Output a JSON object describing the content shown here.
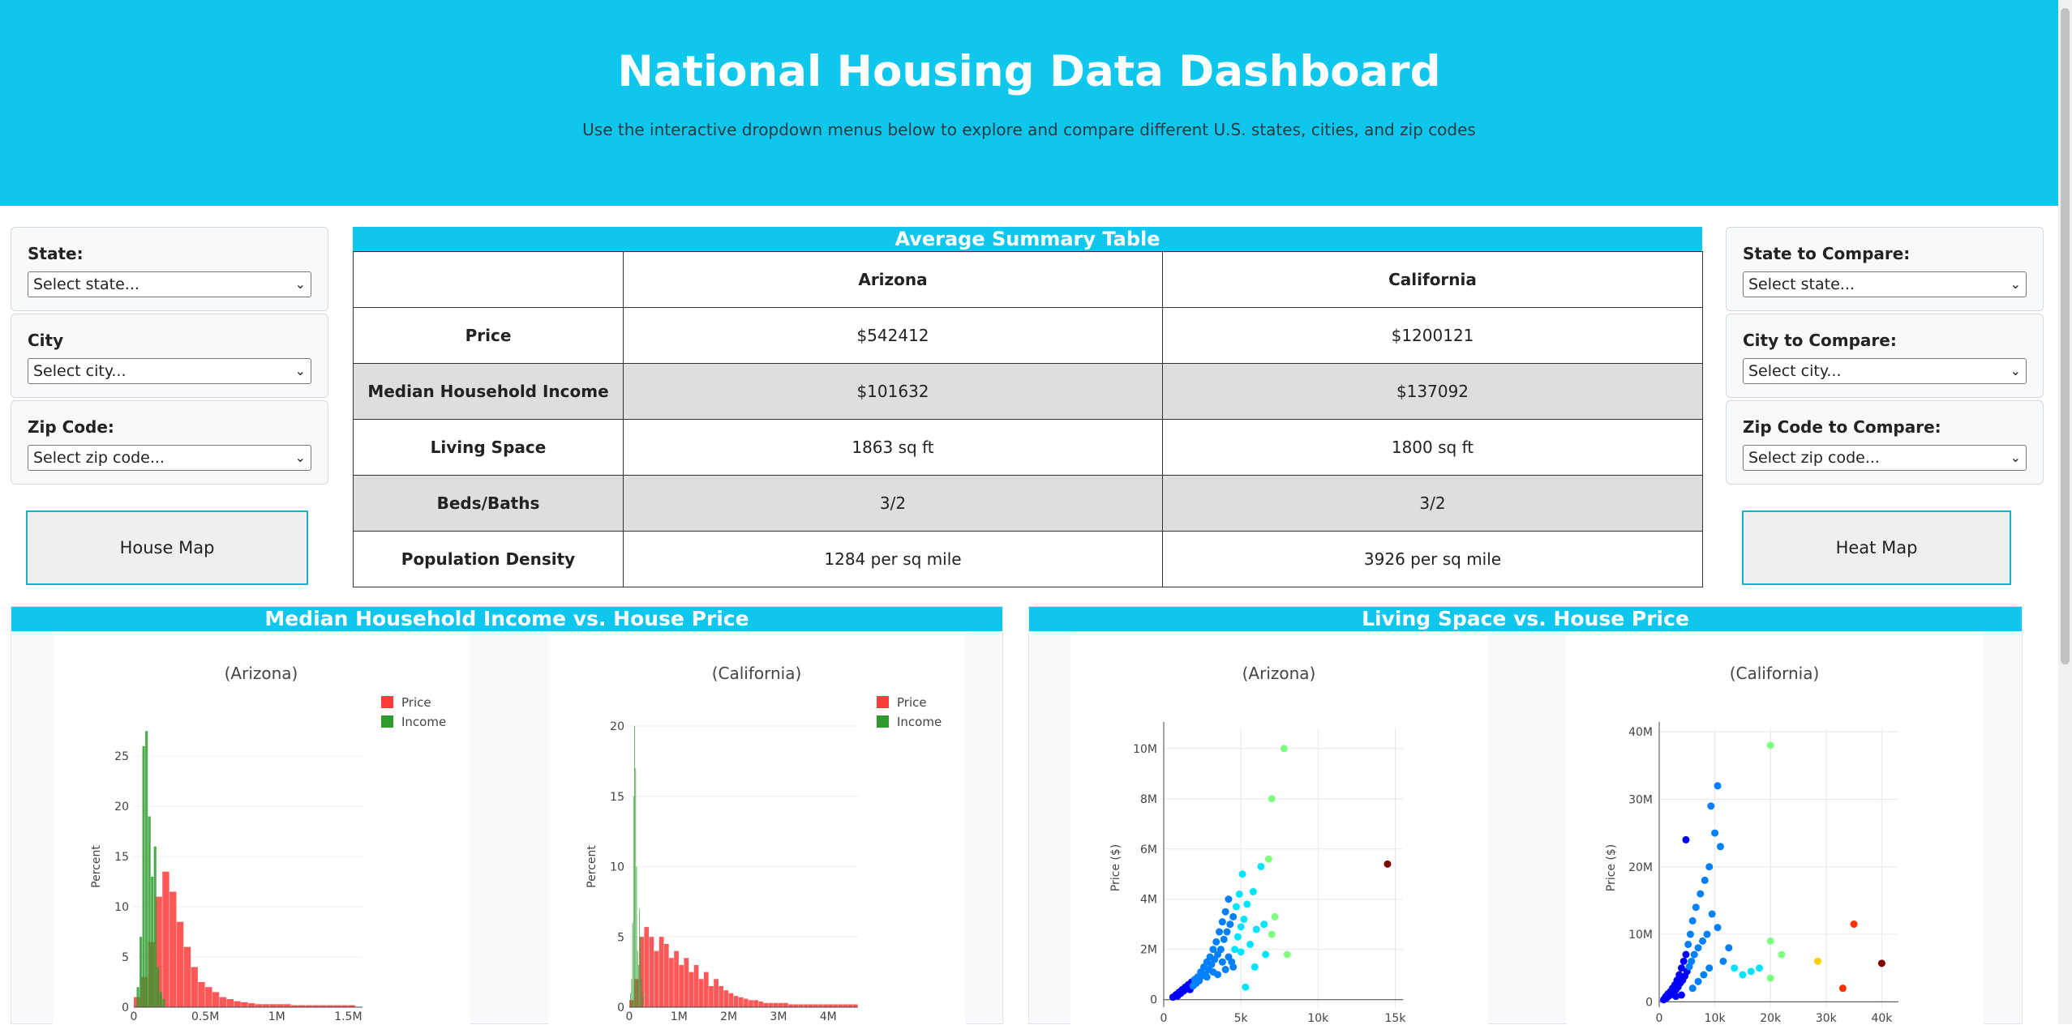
{
  "header": {
    "title": "National Housing Data Dashboard",
    "subtitle": "Use the interactive dropdown menus below to explore and compare different U.S. states, cities, and zip codes"
  },
  "left_controls": {
    "state": {
      "label": "State:",
      "value": "Select state..."
    },
    "city": {
      "label": "City",
      "value": "Select city..."
    },
    "zip": {
      "label": "Zip Code:",
      "value": "Select zip code..."
    },
    "map_button": "House Map"
  },
  "right_controls": {
    "state": {
      "label": "State to Compare:",
      "value": "Select state..."
    },
    "city": {
      "label": "City to Compare:",
      "value": "Select city..."
    },
    "zip": {
      "label": "Zip Code to Compare:",
      "value": "Select zip code..."
    },
    "map_button": "Heat Map"
  },
  "summary_table": {
    "title": "Average Summary Table",
    "columns": [
      "",
      "Arizona",
      "California"
    ],
    "rows": [
      {
        "label": "Price",
        "a": "$542412",
        "b": "$1200121"
      },
      {
        "label": "Median Household Income",
        "a": "$101632",
        "b": "$137092"
      },
      {
        "label": "Living Space",
        "a": "1863 sq ft",
        "b": "1800 sq ft"
      },
      {
        "label": "Beds/Baths",
        "a": "3/2",
        "b": "3/2"
      },
      {
        "label": "Population Density",
        "a": "1284 per sq mile",
        "b": "3926 per sq mile"
      }
    ]
  },
  "panels": {
    "income_title": "Median Household Income vs. House Price",
    "space_title": "Living Space vs. House Price"
  },
  "colors": {
    "header": "#0fc6ec",
    "price": "#ff3b3b",
    "income": "#2e9b2e"
  },
  "chart_data": [
    {
      "type": "bar",
      "title": "(Arizona)",
      "ylabel": "Percent",
      "xlim": [
        0,
        1600000
      ],
      "ylim": [
        0,
        28
      ],
      "xticks": [
        {
          "v": 0,
          "t": "0"
        },
        {
          "v": 500000,
          "t": "0.5M"
        },
        {
          "v": 1000000,
          "t": "1M"
        },
        {
          "v": 1500000,
          "t": "1.5M"
        }
      ],
      "yticks": [
        0,
        5,
        10,
        15,
        20,
        25
      ],
      "series": [
        {
          "name": "Price",
          "bin_start": 0,
          "bin_width": 50000,
          "values": [
            1,
            3,
            6.5,
            11,
            13.5,
            11.5,
            8.5,
            6,
            4,
            2.5,
            2,
            1.5,
            1,
            0.8,
            0.6,
            0.5,
            0.4,
            0.3,
            0.3,
            0.3,
            0.3,
            0.3,
            0.2,
            0.2,
            0.2,
            0.2,
            0.2,
            0.2,
            0.2,
            0.2,
            0.2
          ]
        },
        {
          "name": "Income",
          "bin_start": 20000,
          "bin_width": 20000,
          "values": [
            2,
            7,
            26,
            27.5,
            19,
            13,
            16,
            4,
            1.5,
            0.8
          ]
        }
      ]
    },
    {
      "type": "bar",
      "title": "(California)",
      "ylabel": "Percent",
      "xlim": [
        0,
        4600000
      ],
      "ylim": [
        0,
        20
      ],
      "xticks": [
        {
          "v": 0,
          "t": "0"
        },
        {
          "v": 1000000,
          "t": "1M"
        },
        {
          "v": 2000000,
          "t": "2M"
        },
        {
          "v": 3000000,
          "t": "3M"
        },
        {
          "v": 4000000,
          "t": "4M"
        }
      ],
      "yticks": [
        0,
        5,
        10,
        15,
        20
      ],
      "series": [
        {
          "name": "Price",
          "bin_start": 0,
          "bin_width": 100000,
          "values": [
            0.5,
            2,
            5,
            5.7,
            5,
            4,
            5,
            4.5,
            3.5,
            4,
            3,
            3.5,
            2.5,
            3,
            2,
            2.5,
            1.5,
            2,
            1.5,
            1.2,
            1,
            0.8,
            0.7,
            0.6,
            0.5,
            0.5,
            0.4,
            0.3,
            0.3,
            0.3,
            0.3,
            0.3,
            0.2,
            0.2,
            0.2,
            0.2,
            0.2,
            0.2,
            0.2,
            0.2,
            0.2,
            0.2,
            0.2,
            0.2,
            0.2,
            0.2
          ]
        },
        {
          "name": "Income",
          "bin_start": 20000,
          "bin_width": 20000,
          "values": [
            1,
            2,
            6,
            15,
            20,
            17,
            10,
            4,
            3,
            7,
            5,
            2,
            1
          ]
        }
      ]
    },
    {
      "type": "scatter",
      "title": "(Arizona)",
      "ylabel": "Price ($)",
      "xlim": [
        0,
        15500
      ],
      "ylim": [
        -300000,
        10800000
      ],
      "xticks": [
        {
          "v": 0,
          "t": "0"
        },
        {
          "v": 5000,
          "t": "5k"
        },
        {
          "v": 10000,
          "t": "10k"
        },
        {
          "v": 15000,
          "t": "15k"
        }
      ],
      "yticks": [
        {
          "v": 0,
          "t": "0"
        },
        {
          "v": 2000000,
          "t": "2M"
        },
        {
          "v": 4000000,
          "t": "4M"
        },
        {
          "v": 6000000,
          "t": "6M"
        },
        {
          "v": 8000000,
          "t": "8M"
        },
        {
          "v": 10000000,
          "t": "10M"
        }
      ],
      "points": [
        [
          600,
          100000
        ],
        [
          800,
          200000
        ],
        [
          900,
          150000
        ],
        [
          1000,
          300000
        ],
        [
          1100,
          250000
        ],
        [
          1200,
          400000
        ],
        [
          1300,
          350000
        ],
        [
          1400,
          500000
        ],
        [
          1500,
          450000
        ],
        [
          1600,
          600000
        ],
        [
          1700,
          400000
        ],
        [
          1800,
          700000
        ],
        [
          1900,
          550000
        ],
        [
          2000,
          800000
        ],
        [
          2100,
          650000
        ],
        [
          2200,
          900000
        ],
        [
          2300,
          750000
        ],
        [
          2400,
          1100000
        ],
        [
          2500,
          950000
        ],
        [
          2600,
          1300000
        ],
        [
          2700,
          1000000
        ],
        [
          2800,
          1500000
        ],
        [
          2900,
          1200000
        ],
        [
          3000,
          1700000
        ],
        [
          3100,
          1400000
        ],
        [
          3200,
          2000000
        ],
        [
          3300,
          1600000
        ],
        [
          3400,
          2300000
        ],
        [
          3500,
          1800000
        ],
        [
          3600,
          2700000
        ],
        [
          3700,
          2000000
        ],
        [
          3800,
          3100000
        ],
        [
          3900,
          2400000
        ],
        [
          4000,
          3500000
        ],
        [
          4100,
          2700000
        ],
        [
          4200,
          4000000
        ],
        [
          4300,
          3000000
        ],
        [
          4400,
          1500000
        ],
        [
          4500,
          3300000
        ],
        [
          4600,
          2000000
        ],
        [
          4700,
          3700000
        ],
        [
          4800,
          2500000
        ],
        [
          4900,
          4200000
        ],
        [
          5000,
          2900000
        ],
        [
          5100,
          5000000
        ],
        [
          5200,
          3200000
        ],
        [
          5400,
          3800000
        ],
        [
          5600,
          2200000
        ],
        [
          5800,
          4300000
        ],
        [
          6000,
          2800000
        ],
        [
          6300,
          5300000
        ],
        [
          6500,
          3000000
        ],
        [
          6800,
          5600000
        ],
        [
          7000,
          2600000
        ],
        [
          7200,
          3300000
        ],
        [
          6600,
          1800000
        ],
        [
          5900,
          1300000
        ],
        [
          5300,
          500000
        ],
        [
          7000,
          8000000
        ],
        [
          7800,
          10000000
        ],
        [
          8000,
          1800000
        ],
        [
          14500,
          5400000
        ],
        [
          3500,
          1000000
        ],
        [
          4000,
          1200000
        ],
        [
          4500,
          1300000
        ],
        [
          2800,
          900000
        ],
        [
          3200,
          1100000
        ],
        [
          3800,
          1500000
        ],
        [
          4200,
          1700000
        ],
        [
          5000,
          1900000
        ]
      ]
    },
    {
      "type": "scatter",
      "title": "(California)",
      "ylabel": "Price ($)",
      "xlim": [
        0,
        43000
      ],
      "ylim": [
        -800000,
        40500000
      ],
      "xticks": [
        {
          "v": 0,
          "t": "0"
        },
        {
          "v": 10000,
          "t": "10k"
        },
        {
          "v": 20000,
          "t": "20k"
        },
        {
          "v": 30000,
          "t": "30k"
        },
        {
          "v": 40000,
          "t": "40k"
        }
      ],
      "yticks": [
        {
          "v": 0,
          "t": "0"
        },
        {
          "v": 10000000,
          "t": "10M"
        },
        {
          "v": 20000000,
          "t": "20M"
        },
        {
          "v": 30000000,
          "t": "30M"
        },
        {
          "v": 40000000,
          "t": "40M"
        }
      ],
      "points": [
        [
          800,
          300000
        ],
        [
          1000,
          500000
        ],
        [
          1200,
          800000
        ],
        [
          1400,
          600000
        ],
        [
          1600,
          1200000
        ],
        [
          1800,
          900000
        ],
        [
          2000,
          1500000
        ],
        [
          2200,
          1100000
        ],
        [
          2400,
          2000000
        ],
        [
          2600,
          1400000
        ],
        [
          2800,
          2500000
        ],
        [
          3000,
          1800000
        ],
        [
          3200,
          3200000
        ],
        [
          3400,
          2200000
        ],
        [
          3600,
          4000000
        ],
        [
          3800,
          2800000
        ],
        [
          4000,
          5000000
        ],
        [
          4200,
          3200000
        ],
        [
          4400,
          6000000
        ],
        [
          4600,
          3800000
        ],
        [
          4800,
          7000000
        ],
        [
          5000,
          4500000
        ],
        [
          5200,
          8500000
        ],
        [
          5400,
          5200000
        ],
        [
          5600,
          10000000
        ],
        [
          5800,
          6000000
        ],
        [
          6000,
          12000000
        ],
        [
          6300,
          7000000
        ],
        [
          6600,
          14000000
        ],
        [
          7000,
          8000000
        ],
        [
          7400,
          16000000
        ],
        [
          7800,
          9000000
        ],
        [
          8200,
          18000000
        ],
        [
          8600,
          10000000
        ],
        [
          9000,
          20000000
        ],
        [
          4800,
          24000000
        ],
        [
          9300,
          29000000
        ],
        [
          10500,
          32000000
        ],
        [
          10000,
          25000000
        ],
        [
          11000,
          23000000
        ],
        [
          9500,
          13000000
        ],
        [
          10500,
          11000000
        ],
        [
          11500,
          6000000
        ],
        [
          12500,
          8000000
        ],
        [
          13500,
          5000000
        ],
        [
          15000,
          4000000
        ],
        [
          16500,
          4500000
        ],
        [
          18000,
          5000000
        ],
        [
          20000,
          38000000
        ],
        [
          20000,
          9000000
        ],
        [
          22000,
          7000000
        ],
        [
          20000,
          3500000
        ],
        [
          28500,
          6000000
        ],
        [
          33000,
          2000000
        ],
        [
          35000,
          11500000
        ],
        [
          40000,
          5700000
        ],
        [
          3000,
          800000
        ],
        [
          4000,
          1000000
        ],
        [
          6000,
          2000000
        ],
        [
          7000,
          3000000
        ],
        [
          8000,
          4000000
        ],
        [
          9000,
          5000000
        ]
      ]
    }
  ]
}
